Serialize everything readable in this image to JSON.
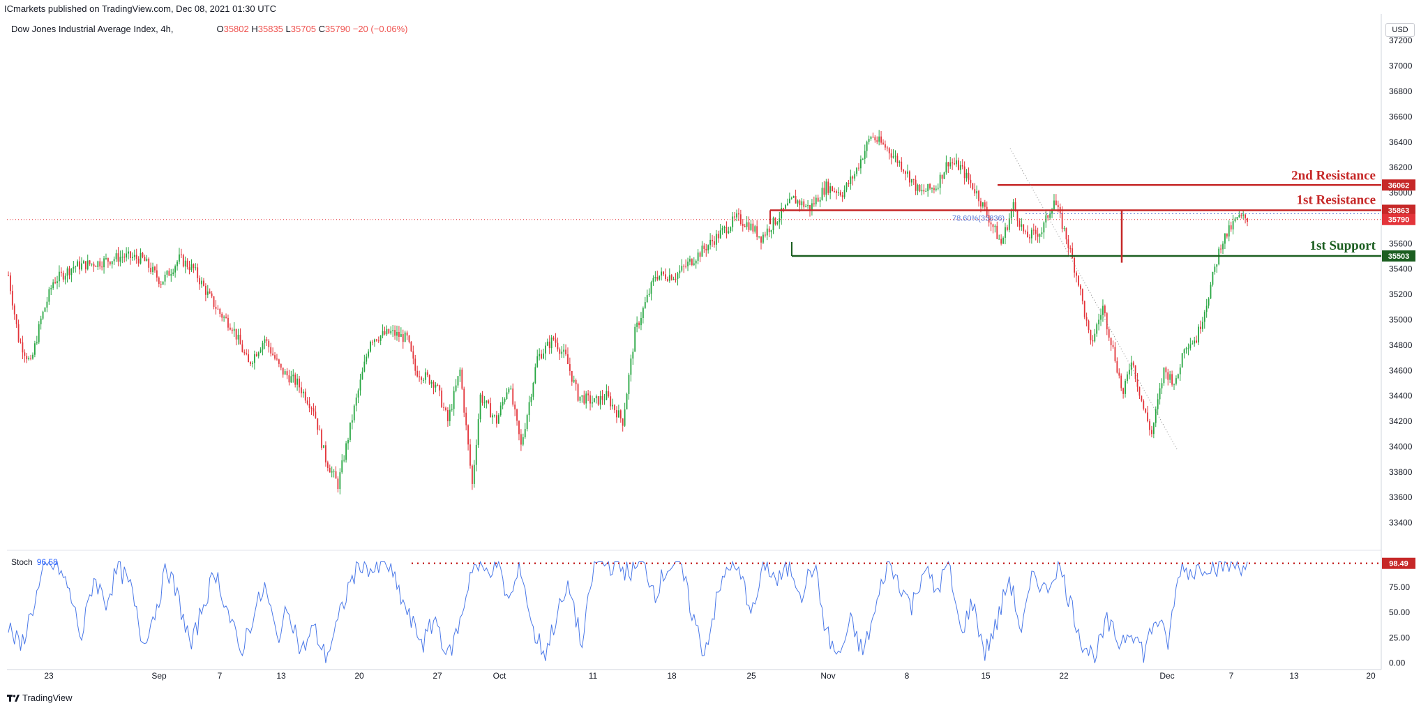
{
  "publisher": "ICmarkets published on TradingView.com, Dec 08, 2021 01:30 UTC",
  "symbol": "Dow Jones Industrial Average Index, 4h,",
  "ohlc": {
    "o_label": "O",
    "o": "35802",
    "h_label": "H",
    "h": "35835",
    "l_label": "L",
    "l": "35705",
    "c_label": "C",
    "c": "35790",
    "chg": "−20 (−0.06%)"
  },
  "currency": "USD",
  "footer": "TradingView",
  "colors": {
    "up": "#26a641",
    "down": "#e3343a",
    "resistance": "#c62828",
    "support": "#1b5e20",
    "stoch": "#4a78e8",
    "axis_text": "#131722"
  },
  "chart_data": {
    "type": "candlestick",
    "price_ylim": [
      33200,
      37300
    ],
    "price_ticks": [
      "37200",
      "37000",
      "36800",
      "36600",
      "36400",
      "36200",
      "36000",
      "35800",
      "35600",
      "35400",
      "35200",
      "35000",
      "34800",
      "34600",
      "34400",
      "34200",
      "34000",
      "33800",
      "33600",
      "33400"
    ],
    "x_ticks": [
      "23",
      "Sep",
      "7",
      "13",
      "20",
      "27",
      "Oct",
      "11",
      "18",
      "25",
      "Nov",
      "8",
      "15",
      "22",
      "Dec",
      "7",
      "13",
      "20"
    ],
    "levels": [
      {
        "label": "2nd Resistance",
        "value": "36062"
      },
      {
        "label": "1st Resistance",
        "value": "35863"
      },
      {
        "label": "1st Support",
        "value": "35503"
      }
    ],
    "last_price": "35790",
    "fib_label": "78.60%(35836)",
    "price_path_anchors": [
      [
        0,
        35350
      ],
      [
        5,
        34850
      ],
      [
        11,
        34650
      ],
      [
        16,
        35000
      ],
      [
        22,
        35300
      ],
      [
        32,
        35420
      ],
      [
        44,
        35450
      ],
      [
        56,
        35500
      ],
      [
        66,
        35480
      ],
      [
        75,
        35300
      ],
      [
        78,
        35350
      ],
      [
        84,
        35480
      ],
      [
        91,
        35400
      ],
      [
        98,
        35200
      ],
      [
        104,
        35050
      ],
      [
        110,
        34950
      ],
      [
        118,
        34650
      ],
      [
        126,
        34850
      ],
      [
        134,
        34600
      ],
      [
        142,
        34500
      ],
      [
        150,
        34300
      ],
      [
        156,
        33900
      ],
      [
        162,
        33700
      ],
      [
        170,
        34300
      ],
      [
        178,
        34850
      ],
      [
        188,
        34900
      ],
      [
        196,
        34850
      ],
      [
        200,
        34600
      ],
      [
        210,
        34500
      ],
      [
        216,
        34200
      ],
      [
        222,
        34600
      ],
      [
        228,
        33700
      ],
      [
        232,
        34400
      ],
      [
        240,
        34200
      ],
      [
        246,
        34500
      ],
      [
        252,
        34000
      ],
      [
        260,
        34700
      ],
      [
        268,
        34850
      ],
      [
        274,
        34700
      ],
      [
        280,
        34400
      ],
      [
        288,
        34350
      ],
      [
        294,
        34400
      ],
      [
        302,
        34200
      ],
      [
        308,
        34900
      ],
      [
        318,
        35350
      ],
      [
        328,
        35350
      ],
      [
        338,
        35500
      ],
      [
        348,
        35650
      ],
      [
        358,
        35800
      ],
      [
        364,
        35750
      ],
      [
        370,
        35650
      ],
      [
        378,
        35800
      ],
      [
        386,
        35950
      ],
      [
        394,
        35880
      ],
      [
        402,
        36050
      ],
      [
        410,
        36000
      ],
      [
        416,
        36150
      ],
      [
        424,
        36450
      ],
      [
        432,
        36350
      ],
      [
        440,
        36200
      ],
      [
        448,
        36000
      ],
      [
        456,
        36050
      ],
      [
        462,
        36250
      ],
      [
        468,
        36200
      ],
      [
        476,
        36000
      ],
      [
        482,
        35800
      ],
      [
        488,
        35600
      ],
      [
        494,
        35900
      ],
      [
        500,
        35650
      ],
      [
        508,
        35700
      ],
      [
        514,
        35950
      ],
      [
        520,
        35650
      ],
      [
        526,
        35300
      ],
      [
        532,
        34800
      ],
      [
        538,
        35100
      ],
      [
        544,
        34700
      ],
      [
        548,
        34400
      ],
      [
        552,
        34700
      ],
      [
        558,
        34300
      ],
      [
        562,
        34100
      ],
      [
        568,
        34600
      ],
      [
        574,
        34500
      ],
      [
        578,
        34800
      ],
      [
        584,
        34850
      ],
      [
        590,
        35200
      ],
      [
        596,
        35600
      ],
      [
        604,
        35800
      ]
    ],
    "stoch_ylim": [
      -5,
      110
    ],
    "stoch_ticks": [
      "75.00",
      "50.00",
      "25.00",
      "0.00"
    ],
    "stoch_value": "96.58",
    "stoch_level_badge": "98.49",
    "stoch_anchors": [
      [
        0,
        35
      ],
      [
        6,
        15
      ],
      [
        12,
        55
      ],
      [
        18,
        92
      ],
      [
        24,
        98
      ],
      [
        30,
        70
      ],
      [
        36,
        25
      ],
      [
        42,
        85
      ],
      [
        48,
        60
      ],
      [
        54,
        95
      ],
      [
        60,
        75
      ],
      [
        66,
        20
      ],
      [
        72,
        50
      ],
      [
        78,
        95
      ],
      [
        84,
        60
      ],
      [
        90,
        15
      ],
      [
        96,
        60
      ],
      [
        102,
        90
      ],
      [
        108,
        50
      ],
      [
        114,
        10
      ],
      [
        120,
        45
      ],
      [
        126,
        75
      ],
      [
        132,
        25
      ],
      [
        138,
        55
      ],
      [
        144,
        10
      ],
      [
        150,
        35
      ],
      [
        156,
        5
      ],
      [
        162,
        40
      ],
      [
        168,
        80
      ],
      [
        174,
        100
      ],
      [
        180,
        90
      ],
      [
        186,
        99
      ],
      [
        192,
        70
      ],
      [
        198,
        40
      ],
      [
        204,
        20
      ],
      [
        210,
        45
      ],
      [
        216,
        5
      ],
      [
        222,
        40
      ],
      [
        228,
        97
      ],
      [
        234,
        90
      ],
      [
        240,
        99
      ],
      [
        246,
        60
      ],
      [
        252,
        95
      ],
      [
        258,
        30
      ],
      [
        264,
        10
      ],
      [
        270,
        50
      ],
      [
        276,
        75
      ],
      [
        282,
        15
      ],
      [
        288,
        100
      ],
      [
        294,
        98
      ],
      [
        300,
        95
      ],
      [
        306,
        90
      ],
      [
        312,
        98
      ],
      [
        318,
        70
      ],
      [
        324,
        95
      ],
      [
        330,
        100
      ],
      [
        336,
        50
      ],
      [
        342,
        10
      ],
      [
        348,
        60
      ],
      [
        354,
        99
      ],
      [
        360,
        85
      ],
      [
        366,
        50
      ],
      [
        372,
        99
      ],
      [
        378,
        80
      ],
      [
        384,
        95
      ],
      [
        390,
        70
      ],
      [
        396,
        98
      ],
      [
        402,
        30
      ],
      [
        408,
        5
      ],
      [
        414,
        40
      ],
      [
        420,
        10
      ],
      [
        426,
        50
      ],
      [
        432,
        99
      ],
      [
        438,
        80
      ],
      [
        444,
        55
      ],
      [
        450,
        95
      ],
      [
        456,
        70
      ],
      [
        462,
        98
      ],
      [
        468,
        30
      ],
      [
        474,
        60
      ],
      [
        480,
        10
      ],
      [
        486,
        40
      ],
      [
        492,
        85
      ],
      [
        498,
        30
      ],
      [
        504,
        90
      ],
      [
        510,
        70
      ],
      [
        516,
        99
      ],
      [
        522,
        60
      ],
      [
        528,
        20
      ],
      [
        534,
        5
      ],
      [
        540,
        40
      ],
      [
        546,
        20
      ],
      [
        552,
        35
      ],
      [
        558,
        10
      ],
      [
        564,
        45
      ],
      [
        570,
        20
      ],
      [
        576,
        95
      ],
      [
        582,
        90
      ],
      [
        588,
        98
      ],
      [
        594,
        96
      ],
      [
        600,
        97
      ]
    ]
  }
}
